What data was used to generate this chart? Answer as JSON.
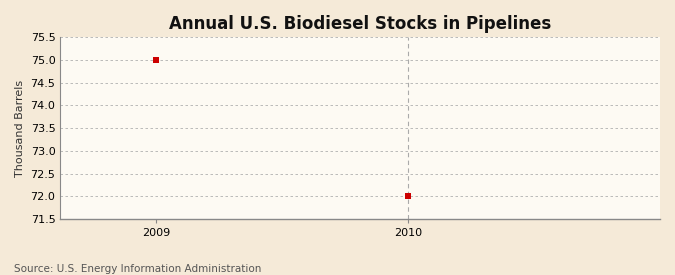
{
  "title": "Annual U.S. Biodiesel Stocks in Pipelines",
  "ylabel": "Thousand Barrels",
  "source": "Source: U.S. Energy Information Administration",
  "x_values": [
    2009,
    2010
  ],
  "y_values": [
    75.0,
    72.0
  ],
  "ylim": [
    71.5,
    75.5
  ],
  "xlim": [
    2008.62,
    2011.0
  ],
  "yticks": [
    71.5,
    72.0,
    72.5,
    73.0,
    73.5,
    74.0,
    74.5,
    75.0,
    75.5
  ],
  "xticks": [
    2009,
    2010
  ],
  "marker_color": "#cc0000",
  "marker_size": 4,
  "grid_color": "#b0b0b0",
  "vline_color": "#aaaaaa",
  "bg_color": "#f5ead8",
  "plot_bg_color": "#fdfaf3",
  "title_fontsize": 12,
  "title_fontweight": "bold",
  "label_fontsize": 8,
  "tick_fontsize": 8,
  "source_fontsize": 7.5
}
